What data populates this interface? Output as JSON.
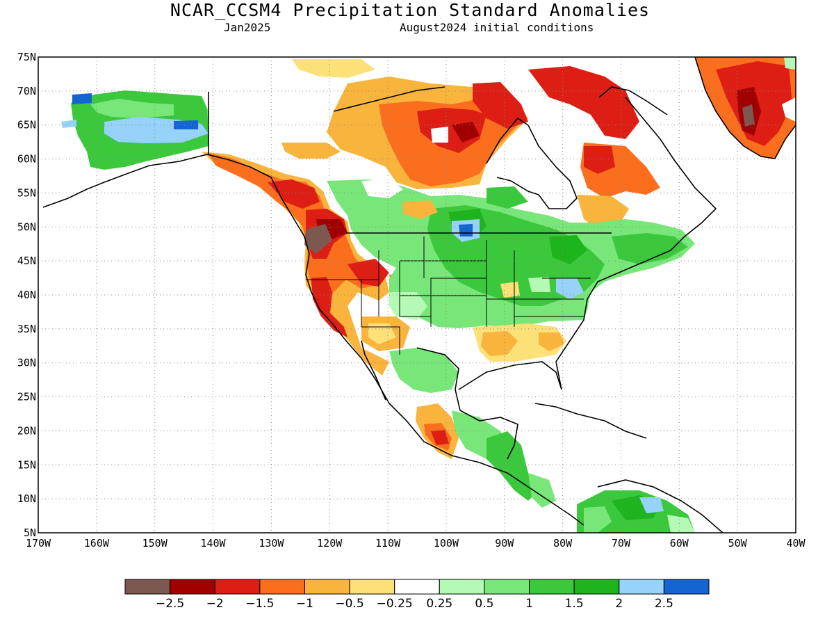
{
  "figure": {
    "title": "NCAR_CCSM4 Precipitation Standard Anomalies",
    "valid_month": "Jan2025",
    "init_conditions": "August2024 initial conditions"
  },
  "map": {
    "region": "North America",
    "projection": "cylindrical equidistant",
    "lon_range": [
      -170,
      -40
    ],
    "lat_range": [
      5,
      75
    ],
    "gridlines": "dotted",
    "lat_labels": [
      "75N",
      "70N",
      "65N",
      "60N",
      "55N",
      "50N",
      "45N",
      "40N",
      "35N",
      "30N",
      "25N",
      "20N",
      "15N",
      "10N",
      "5N"
    ],
    "lon_labels": [
      "170W",
      "160W",
      "150W",
      "140W",
      "130W",
      "120W",
      "110W",
      "100W",
      "90W",
      "80W",
      "70W",
      "60W",
      "50W",
      "40W"
    ]
  },
  "colorbar": {
    "colors": [
      "#7c5850",
      "#a00000",
      "#dc1e14",
      "#fa6e1e",
      "#f8b43c",
      "#fce078",
      "#ffffff",
      "#b4fab4",
      "#78e678",
      "#3cc83c",
      "#1eb41e",
      "#96d2fa",
      "#1464d2"
    ],
    "labels": [
      "-2.5",
      "-2",
      "-1.5",
      "-1",
      "-0.5",
      "-0.25",
      "0.25",
      "0.5",
      "1",
      "1.5",
      "2",
      "2.5"
    ]
  },
  "anomaly_regions": [
    {
      "area": "Alaska interior",
      "category": "1 to 2"
    },
    {
      "area": "Pacific Northwest / Oregon",
      "category": "below -2"
    },
    {
      "area": "Nevada / northern California",
      "category": "-2 to -1.5"
    },
    {
      "area": "Hudson Bay / northern Quebec",
      "category": "-2 to -1"
    },
    {
      "area": "Greenland southern tip",
      "category": "-2 to -1"
    },
    {
      "area": "Labrador",
      "category": "-1.5 to -1"
    },
    {
      "area": "Upper Midwest / Great Lakes",
      "category": "0.5 to 1.5"
    },
    {
      "area": "Ohio Valley / Mid-Atlantic",
      "category": "0.5 to 2"
    },
    {
      "area": "Southeast US Gulf coast",
      "category": "-0.5 to -0.25"
    },
    {
      "area": "Northern South America",
      "category": "1 to 2"
    },
    {
      "area": "Southwest Mexico coast",
      "category": "-2 to -1"
    }
  ]
}
